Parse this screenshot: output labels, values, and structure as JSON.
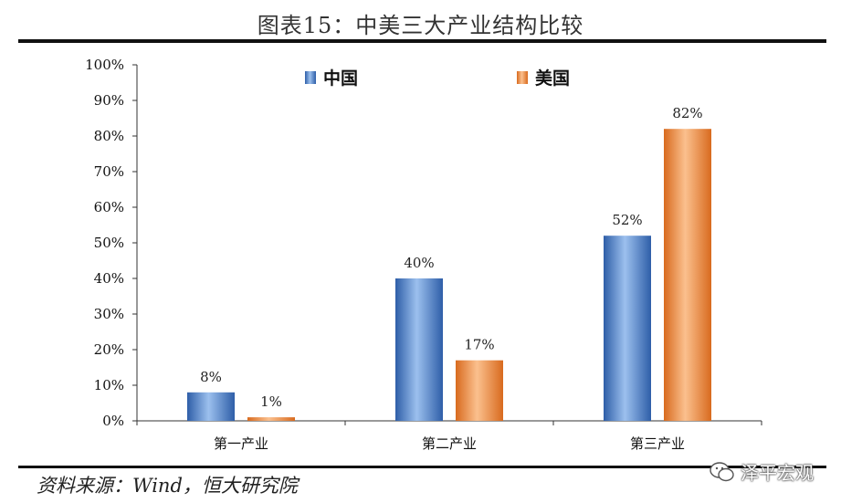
{
  "title": "图表15：中美三大产业结构比较",
  "source": "资料来源：Wind，恒大研究院",
  "brand": "泽平宏观",
  "chart_data": {
    "type": "bar",
    "categories": [
      "第一产业",
      "第二产业",
      "第三产业"
    ],
    "series": [
      {
        "name": "中国",
        "values": [
          8,
          40,
          52
        ],
        "labels": [
          "8%",
          "40%",
          "52%"
        ],
        "color": "#4a7cc4"
      },
      {
        "name": "美国",
        "values": [
          1,
          17,
          82
        ],
        "labels": [
          "1%",
          "17%",
          "82%"
        ],
        "color": "#e8833a"
      }
    ],
    "ylim": [
      0,
      100
    ],
    "yticks": [
      "0%",
      "10%",
      "20%",
      "30%",
      "40%",
      "50%",
      "60%",
      "70%",
      "80%",
      "90%",
      "100%"
    ],
    "legend_position": "top",
    "grid": false
  }
}
